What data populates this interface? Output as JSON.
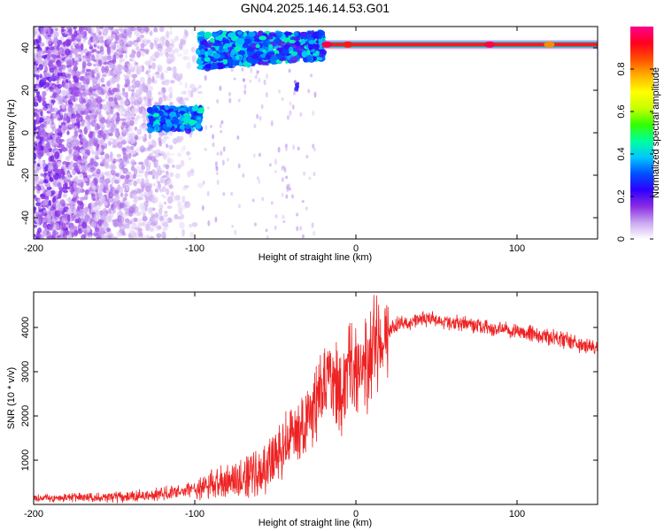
{
  "figure": {
    "title": "GN04.2025.146.14.53.G01"
  },
  "chart_data": [
    {
      "type": "heatmap",
      "xlabel": "Height of straight line (km)",
      "ylabel": "Frequency (Hz)",
      "xlim": [
        -200,
        150
      ],
      "ylim": [
        -50,
        50
      ],
      "xticks": [
        -200,
        -100,
        0,
        100
      ],
      "yticks": [
        -40,
        -20,
        0,
        20,
        40
      ],
      "colorbar": {
        "label": "Normalized spectral amplitude",
        "range": [
          0,
          1
        ],
        "ticks": [
          0,
          0.2,
          0.4,
          0.6,
          0.8
        ],
        "colormap": [
          "#ffffff",
          "#c9a6f0",
          "#8a2be2",
          "#2d00ff",
          "#0050ff",
          "#00c8ff",
          "#00ff9c",
          "#33ff00",
          "#c8ff00",
          "#ffff00",
          "#ffb000",
          "#ff5000",
          "#ff0020",
          "#ff0090"
        ]
      },
      "features": [
        {
          "name": "noise",
          "x_range": [
            -200,
            -95
          ],
          "y_range": [
            -50,
            50
          ],
          "amplitude": 0.2
        },
        {
          "name": "burst",
          "x_range": [
            -128,
            -96
          ],
          "y_range": [
            1,
            12
          ],
          "amplitude": 0.35
        },
        {
          "name": "rising band",
          "x_range": [
            -97,
            -20
          ],
          "y_range": [
            30,
            47
          ],
          "amplitude": 0.35
        },
        {
          "name": "tone",
          "x": [
            -20,
            150
          ],
          "y": 41.5,
          "amplitude": 0.9
        },
        {
          "name": "spot",
          "x": -37,
          "y": 22,
          "amplitude": 0.2
        }
      ]
    },
    {
      "type": "line",
      "xlabel": "Height of straight line (km)",
      "ylabel": "SNR (10 * v/v)",
      "xlim": [
        -200,
        150
      ],
      "ylim": [
        0,
        4800
      ],
      "xticks": [
        -200,
        -100,
        0,
        100
      ],
      "yticks": [
        1000,
        2000,
        3000,
        4000
      ],
      "color": "#ee2222",
      "series": [
        {
          "x": [
            -200,
            -180,
            -160,
            -140,
            -120,
            -100,
            -90,
            -80,
            -70,
            -60,
            -55,
            -50,
            -45,
            -40,
            -35,
            -30,
            -25,
            -20,
            -15,
            -10,
            -5,
            0,
            5,
            10,
            15,
            20,
            25,
            30,
            35,
            40,
            45,
            50,
            60,
            70,
            80,
            85,
            90,
            95,
            100,
            110,
            120,
            130,
            140,
            150
          ],
          "values": [
            150,
            150,
            160,
            170,
            230,
            350,
            450,
            500,
            600,
            750,
            900,
            1000,
            1300,
            1700,
            1600,
            2000,
            2300,
            2600,
            2700,
            2600,
            2900,
            3000,
            3100,
            3300,
            3600,
            3900,
            4050,
            4100,
            4150,
            4200,
            4200,
            4150,
            4100,
            4050,
            4000,
            3950,
            4000,
            3950,
            3900,
            3850,
            3800,
            3700,
            3600,
            3550
          ]
        }
      ]
    }
  ]
}
